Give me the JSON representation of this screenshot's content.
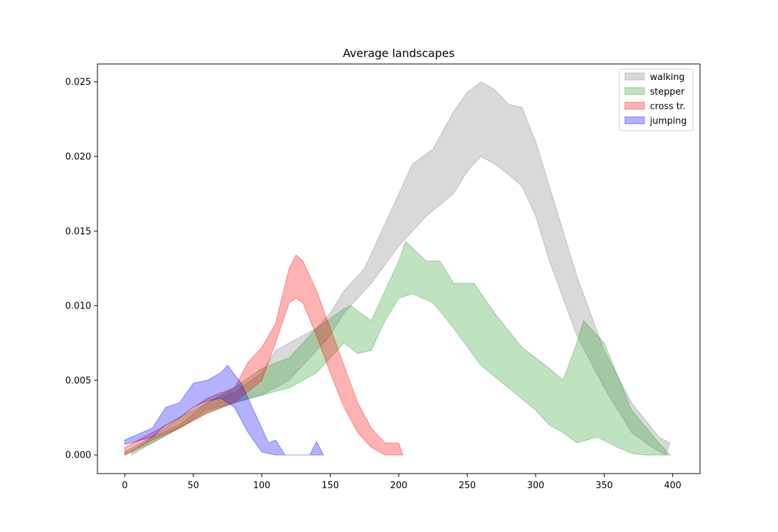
{
  "chart_data": {
    "type": "area",
    "title": "Average landscapes",
    "xlabel": "",
    "ylabel": "",
    "xlim": [
      -20,
      420
    ],
    "ylim": [
      -0.00125,
      0.0262
    ],
    "xticks": [
      0,
      50,
      100,
      150,
      200,
      250,
      300,
      350,
      400
    ],
    "yticks": [
      0.0,
      0.005,
      0.01,
      0.015,
      0.02,
      0.025
    ],
    "ytick_labels": [
      "0.000",
      "0.005",
      "0.010",
      "0.015",
      "0.020",
      "0.025"
    ],
    "grid": false,
    "legend_position": "top-right",
    "series": [
      {
        "name": "walking",
        "color": "#808080",
        "upper": [
          [
            5,
            0.0002
          ],
          [
            20,
            0.0012
          ],
          [
            40,
            0.002
          ],
          [
            60,
            0.0035
          ],
          [
            80,
            0.0042
          ],
          [
            100,
            0.0055
          ],
          [
            110,
            0.007
          ],
          [
            120,
            0.0075
          ],
          [
            140,
            0.0085
          ],
          [
            150,
            0.0095
          ],
          [
            160,
            0.011
          ],
          [
            175,
            0.0125
          ],
          [
            190,
            0.0155
          ],
          [
            210,
            0.0195
          ],
          [
            225,
            0.0205
          ],
          [
            240,
            0.023
          ],
          [
            250,
            0.0243
          ],
          [
            260,
            0.025
          ],
          [
            270,
            0.0245
          ],
          [
            280,
            0.0235
          ],
          [
            290,
            0.0233
          ],
          [
            300,
            0.021
          ],
          [
            310,
            0.018
          ],
          [
            330,
            0.012
          ],
          [
            350,
            0.007
          ],
          [
            370,
            0.0035
          ],
          [
            390,
            0.0012
          ],
          [
            398,
            0.0008
          ]
        ],
        "lower": [
          [
            5,
            0.0
          ],
          [
            20,
            0.0008
          ],
          [
            40,
            0.0018
          ],
          [
            60,
            0.003
          ],
          [
            80,
            0.0035
          ],
          [
            100,
            0.004
          ],
          [
            120,
            0.005
          ],
          [
            140,
            0.007
          ],
          [
            150,
            0.008
          ],
          [
            160,
            0.0095
          ],
          [
            180,
            0.0115
          ],
          [
            200,
            0.014
          ],
          [
            220,
            0.016
          ],
          [
            240,
            0.0175
          ],
          [
            250,
            0.019
          ],
          [
            260,
            0.02
          ],
          [
            270,
            0.0195
          ],
          [
            280,
            0.0188
          ],
          [
            290,
            0.018
          ],
          [
            300,
            0.016
          ],
          [
            310,
            0.013
          ],
          [
            330,
            0.008
          ],
          [
            350,
            0.0045
          ],
          [
            370,
            0.0015
          ],
          [
            385,
            0.0005
          ],
          [
            395,
            0.0
          ]
        ]
      },
      {
        "name": "stepper",
        "color": "#2ca02c",
        "upper": [
          [
            0,
            0.0002
          ],
          [
            20,
            0.0012
          ],
          [
            40,
            0.0025
          ],
          [
            60,
            0.0035
          ],
          [
            80,
            0.0045
          ],
          [
            100,
            0.0058
          ],
          [
            120,
            0.0065
          ],
          [
            140,
            0.0085
          ],
          [
            160,
            0.0098
          ],
          [
            165,
            0.01
          ],
          [
            180,
            0.009
          ],
          [
            190,
            0.011
          ],
          [
            200,
            0.013
          ],
          [
            205,
            0.0143
          ],
          [
            220,
            0.013
          ],
          [
            230,
            0.013
          ],
          [
            240,
            0.0115
          ],
          [
            255,
            0.0115
          ],
          [
            270,
            0.0095
          ],
          [
            290,
            0.0072
          ],
          [
            300,
            0.0065
          ],
          [
            310,
            0.0058
          ],
          [
            320,
            0.005
          ],
          [
            330,
            0.0075
          ],
          [
            335,
            0.009
          ],
          [
            350,
            0.0075
          ],
          [
            370,
            0.003
          ],
          [
            390,
            0.0008
          ],
          [
            398,
            0.0
          ]
        ],
        "lower": [
          [
            0,
            0.0
          ],
          [
            20,
            0.0008
          ],
          [
            40,
            0.0018
          ],
          [
            60,
            0.0028
          ],
          [
            80,
            0.0035
          ],
          [
            100,
            0.004
          ],
          [
            120,
            0.0045
          ],
          [
            140,
            0.0055
          ],
          [
            160,
            0.0075
          ],
          [
            170,
            0.0068
          ],
          [
            180,
            0.007
          ],
          [
            190,
            0.009
          ],
          [
            200,
            0.0105
          ],
          [
            210,
            0.0108
          ],
          [
            225,
            0.0102
          ],
          [
            240,
            0.0085
          ],
          [
            260,
            0.006
          ],
          [
            280,
            0.0045
          ],
          [
            300,
            0.003
          ],
          [
            310,
            0.002
          ],
          [
            320,
            0.0015
          ],
          [
            330,
            0.0008
          ],
          [
            345,
            0.0012
          ],
          [
            360,
            0.0005
          ],
          [
            370,
            0.0001
          ],
          [
            380,
            0.0
          ],
          [
            398,
            0.0
          ]
        ]
      },
      {
        "name": "cross tr.",
        "color": "#ff0000",
        "upper": [
          [
            0,
            0.0005
          ],
          [
            20,
            0.0015
          ],
          [
            40,
            0.0025
          ],
          [
            60,
            0.0038
          ],
          [
            80,
            0.0045
          ],
          [
            90,
            0.0062
          ],
          [
            100,
            0.0072
          ],
          [
            110,
            0.0088
          ],
          [
            120,
            0.0125
          ],
          [
            125,
            0.0134
          ],
          [
            130,
            0.013
          ],
          [
            140,
            0.011
          ],
          [
            150,
            0.0085
          ],
          [
            160,
            0.006
          ],
          [
            170,
            0.0035
          ],
          [
            180,
            0.0018
          ],
          [
            190,
            0.0008
          ],
          [
            200,
            0.0008
          ],
          [
            203,
            0.0
          ]
        ],
        "lower": [
          [
            0,
            0.0
          ],
          [
            20,
            0.001
          ],
          [
            40,
            0.0018
          ],
          [
            60,
            0.0028
          ],
          [
            80,
            0.0035
          ],
          [
            100,
            0.005
          ],
          [
            110,
            0.0075
          ],
          [
            120,
            0.0102
          ],
          [
            125,
            0.0105
          ],
          [
            130,
            0.0102
          ],
          [
            140,
            0.008
          ],
          [
            150,
            0.0055
          ],
          [
            160,
            0.0032
          ],
          [
            170,
            0.0015
          ],
          [
            180,
            0.0005
          ],
          [
            190,
            0.0
          ],
          [
            203,
            0.0
          ]
        ]
      },
      {
        "name": "jumping",
        "color": "#0000ff",
        "upper": [
          [
            0,
            0.001
          ],
          [
            20,
            0.0018
          ],
          [
            30,
            0.0032
          ],
          [
            40,
            0.0035
          ],
          [
            50,
            0.0048
          ],
          [
            60,
            0.005
          ],
          [
            70,
            0.0055
          ],
          [
            75,
            0.006
          ],
          [
            85,
            0.0048
          ],
          [
            95,
            0.0028
          ],
          [
            100,
            0.0018
          ],
          [
            105,
            0.0008
          ],
          [
            110,
            0.001
          ],
          [
            117,
            0.0
          ],
          [
            135,
            0.0
          ],
          [
            140,
            0.0009
          ],
          [
            145,
            0.0
          ]
        ],
        "lower": [
          [
            0,
            0.0007
          ],
          [
            20,
            0.0012
          ],
          [
            30,
            0.002
          ],
          [
            40,
            0.0025
          ],
          [
            50,
            0.0032
          ],
          [
            60,
            0.0036
          ],
          [
            70,
            0.0038
          ],
          [
            80,
            0.0032
          ],
          [
            90,
            0.0015
          ],
          [
            100,
            0.0002
          ],
          [
            110,
            0.0
          ],
          [
            117,
            0.0
          ],
          [
            135,
            0.0
          ],
          [
            145,
            0.0
          ]
        ]
      }
    ]
  }
}
